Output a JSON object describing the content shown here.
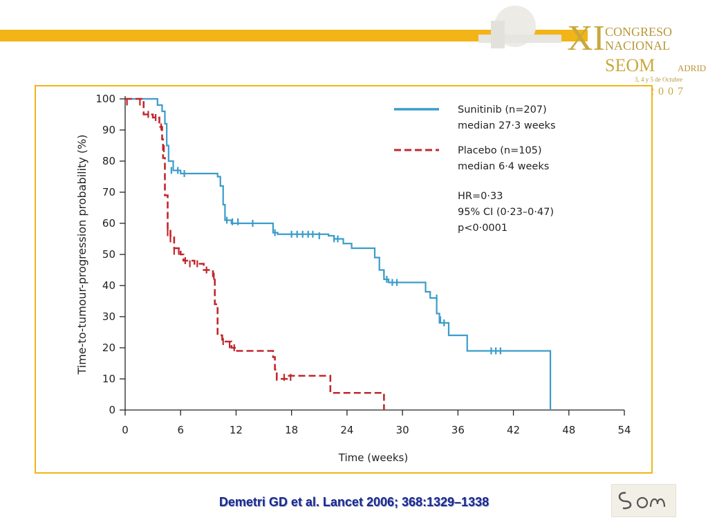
{
  "header": {
    "congress_numeral": "XI",
    "congress_line1": "CONGRESO",
    "congress_line2": "NACIONAL",
    "seom": "SEOM",
    "city": "ADRID",
    "dates": "3, 4 y 5 de Octubre",
    "year": "2007"
  },
  "citation": "Demetri GD et al. Lancet 2006; 368:1329–1338",
  "footer_logo": "seom",
  "chart_data": {
    "type": "line",
    "xlabel": "Time (weeks)",
    "ylabel": "Time-to-tumour-progression probability (%)",
    "xlim": [
      0,
      54
    ],
    "ylim": [
      0,
      100
    ],
    "xticks": [
      0,
      6,
      12,
      18,
      24,
      30,
      36,
      42,
      48,
      54
    ],
    "yticks": [
      0,
      10,
      20,
      30,
      40,
      50,
      60,
      70,
      80,
      90,
      100
    ],
    "grid": false,
    "legend_position": "top-right",
    "annotations": [
      "HR=0·33",
      "95% CI (0·23–0·47)",
      "p<0·0001"
    ],
    "series": [
      {
        "name": "Sunitinib (n=207)",
        "subtitle": "median 27·3 weeks",
        "color": "#3a9ccb",
        "style": "solid",
        "steps": [
          [
            0,
            100
          ],
          [
            3.5,
            98
          ],
          [
            4,
            96
          ],
          [
            4.3,
            92
          ],
          [
            4.5,
            85
          ],
          [
            4.7,
            80
          ],
          [
            5.2,
            77
          ],
          [
            6,
            76
          ],
          [
            10,
            75
          ],
          [
            10.3,
            72
          ],
          [
            10.6,
            66
          ],
          [
            10.8,
            61
          ],
          [
            11.5,
            60
          ],
          [
            16,
            57
          ],
          [
            16.5,
            56.5
          ],
          [
            22,
            56
          ],
          [
            22.6,
            55
          ],
          [
            23.6,
            53.5
          ],
          [
            24.5,
            52
          ],
          [
            27,
            49
          ],
          [
            27.5,
            45
          ],
          [
            28,
            42
          ],
          [
            28.5,
            41
          ],
          [
            30,
            41
          ],
          [
            32.5,
            38
          ],
          [
            33,
            36
          ],
          [
            33.7,
            31
          ],
          [
            34,
            28
          ],
          [
            35,
            24
          ],
          [
            37,
            19
          ],
          [
            46,
            19
          ],
          [
            46,
            0
          ]
        ],
        "censors": [
          [
            5,
            77
          ],
          [
            5.7,
            77
          ],
          [
            6.4,
            76
          ],
          [
            11,
            61
          ],
          [
            11.6,
            60.5
          ],
          [
            12.2,
            60.5
          ],
          [
            13.8,
            60
          ],
          [
            16.2,
            57
          ],
          [
            18,
            56.5
          ],
          [
            18.6,
            56.5
          ],
          [
            19.2,
            56.5
          ],
          [
            19.8,
            56.5
          ],
          [
            20.3,
            56.5
          ],
          [
            21,
            56
          ],
          [
            22.6,
            55
          ],
          [
            23,
            55
          ],
          [
            28,
            44
          ],
          [
            28.3,
            42
          ],
          [
            28.9,
            41
          ],
          [
            29.4,
            41
          ],
          [
            33.7,
            36
          ],
          [
            34.1,
            29
          ],
          [
            34.5,
            28
          ],
          [
            39.6,
            19
          ],
          [
            40.1,
            19
          ],
          [
            40.6,
            19
          ]
        ]
      },
      {
        "name": "Placebo (n=105)",
        "subtitle": "median 6·4 weeks",
        "color": "#c0272d",
        "style": "dashed",
        "steps": [
          [
            0,
            100
          ],
          [
            2,
            99
          ],
          [
            2,
            95
          ],
          [
            3,
            94
          ],
          [
            3.7,
            91
          ],
          [
            4,
            87
          ],
          [
            4.1,
            81
          ],
          [
            4.3,
            69
          ],
          [
            4.6,
            58
          ],
          [
            4.9,
            56
          ],
          [
            5.3,
            52
          ],
          [
            6,
            50
          ],
          [
            6.3,
            48
          ],
          [
            7.5,
            47
          ],
          [
            8.5,
            45
          ],
          [
            9.5,
            43
          ],
          [
            9.7,
            34
          ],
          [
            10,
            24
          ],
          [
            10.5,
            22
          ],
          [
            11.5,
            20
          ],
          [
            12,
            19
          ],
          [
            16,
            17
          ],
          [
            16.2,
            13
          ],
          [
            16.4,
            10
          ],
          [
            17.5,
            11
          ],
          [
            22,
            11
          ],
          [
            22.2,
            5.5
          ],
          [
            28,
            5.5
          ],
          [
            28,
            0
          ]
        ],
        "censors": [
          [
            0.2,
            99
          ],
          [
            1.6,
            99
          ],
          [
            2.5,
            95
          ],
          [
            3.3,
            94
          ],
          [
            3.9,
            91
          ],
          [
            4.2,
            84
          ],
          [
            4.6,
            57
          ],
          [
            4.9,
            55
          ],
          [
            5.3,
            51
          ],
          [
            5.8,
            51
          ],
          [
            6.5,
            48
          ],
          [
            7,
            47
          ],
          [
            7.8,
            47
          ],
          [
            8.8,
            45
          ],
          [
            9.6,
            43
          ],
          [
            10.6,
            22
          ],
          [
            11.3,
            21
          ],
          [
            11.8,
            20
          ],
          [
            16.4,
            10.5
          ],
          [
            17.2,
            10.5
          ],
          [
            17.9,
            10.5
          ]
        ]
      }
    ]
  }
}
